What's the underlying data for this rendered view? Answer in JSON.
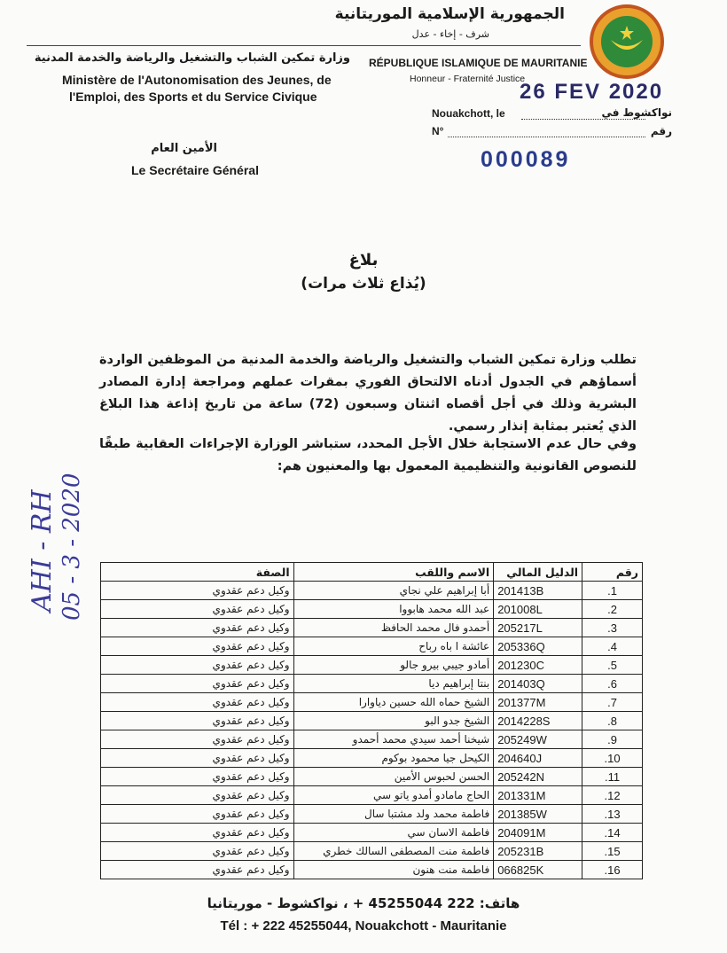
{
  "header": {
    "republic_ar": "الجمهورية الإسلامية الموريتانية",
    "motto_ar": "شرف - إخاء - عدل",
    "ministry_ar": "وزارة تمكين الشباب والتشغيل والرياضة والخدمة المدنية",
    "ministry_fr": [
      "Ministère de l'Autonomisation des Jeunes, de",
      "l'Emploi, des Sports et du Service Civique"
    ],
    "republic_fr": "RÉPUBLIQUE ISLAMIQUE DE MAURITANIE",
    "motto_fr": "Honneur - Fraternité  Justice",
    "date_stamp": "26 FEV 2020",
    "place_fr": "Nouakchott, le",
    "place_ar": "نواكشوط في",
    "number_fr": "N°",
    "number_ar": "رقم",
    "reference_number": "000089",
    "secretary_ar": "الأمين العام",
    "secretary_fr": "Le Secrétaire Général"
  },
  "notice": {
    "title": "بلاغ",
    "subtitle": "(يُذاع ثلاث مرات)",
    "paragraphs": [
      "تطلب وزارة تمكين الشباب والتشغيل والرياضة والخدمة المدنية من الموظفين الواردة أسماؤهم في الجدول أدناه الالتحاق الفوري بمقرات عملهم ومراجعة إدارة المصادر البشرية وذلك في أجل أقصاه اثنتان وسبعون (72) ساعة من تاريخ إذاعة هذا البلاغ الذي يُعتبر بمثابة إنذار رسمي.",
      "وفي حال عدم الاستجابة خلال الأجل المحدد، ستباشر الوزارة الإجراءات العقابية طبقًا للنصوص القانونية والتنظيمية المعمول بها والمعنيون هم:"
    ]
  },
  "handwritten": [
    "AHI - RH",
    "05 - 3 - 2020"
  ],
  "table": {
    "headers": [
      "رقم",
      "الدليل المالي",
      "الاسم واللقب",
      "الصفة"
    ],
    "rows": [
      [
        "1.",
        "201413B",
        "أبا إبراهيم علي نجاي",
        "وكيل دعم عقدوي"
      ],
      [
        "2.",
        "201008L",
        "عبد الله محمد هابووا",
        "وكيل دعم عقدوي"
      ],
      [
        "3.",
        "205217L",
        "أحمدو فال محمد الحافظ",
        "وكيل دعم عقدوي"
      ],
      [
        "4.",
        "205336Q",
        "عائشة ا باه رباح",
        "وكيل دعم عقدوي"
      ],
      [
        "5.",
        "201230C",
        "أمادو جيبي بيرو جالو",
        "وكيل دعم عقدوي"
      ],
      [
        "6.",
        "201403Q",
        "بنتا إبراهيم ديا",
        "وكيل دعم عقدوي"
      ],
      [
        "7.",
        "201377M",
        "الشيخ حماه الله حسين دياوارا",
        "وكيل دعم عقدوي"
      ],
      [
        "8.",
        "2014228S",
        "الشيخ جدو البو",
        "وكيل دعم عقدوي"
      ],
      [
        "9.",
        "205249W",
        "شيخنا أحمد سيدي محمد أحمدو",
        "وكيل دعم عقدوي"
      ],
      [
        "10.",
        "204640J",
        "الكيحل جيا محمود بوكوم",
        "وكيل دعم عقدوي"
      ],
      [
        "11.",
        "205242N",
        "الحسن لحبوس الأمين",
        "وكيل دعم عقدوي"
      ],
      [
        "12.",
        "201331M",
        "الحاج مامادو أمدو ياتو سي",
        "وكيل دعم عقدوي"
      ],
      [
        "13.",
        "201385W",
        "فاطمة محمد ولد مشتبا سال",
        "وكيل دعم عقدوي"
      ],
      [
        "14.",
        "204091M",
        "فاطمة الاسان سي",
        "وكيل دعم عقدوي"
      ],
      [
        "15.",
        "205231B",
        "فاطمة منت المصطفى السالك خطري",
        "وكيل دعم عقدوي"
      ],
      [
        "16.",
        "066825K",
        "فاطمة منت هنون",
        "وكيل دعم عقدوي"
      ]
    ]
  },
  "footer": {
    "contact_ar": "هاتف: 222 45255044 + ، نواكشوط - موريتانيا",
    "contact_fr": "Tél : + 222 45255044, Nouakchott - Mauritanie"
  }
}
